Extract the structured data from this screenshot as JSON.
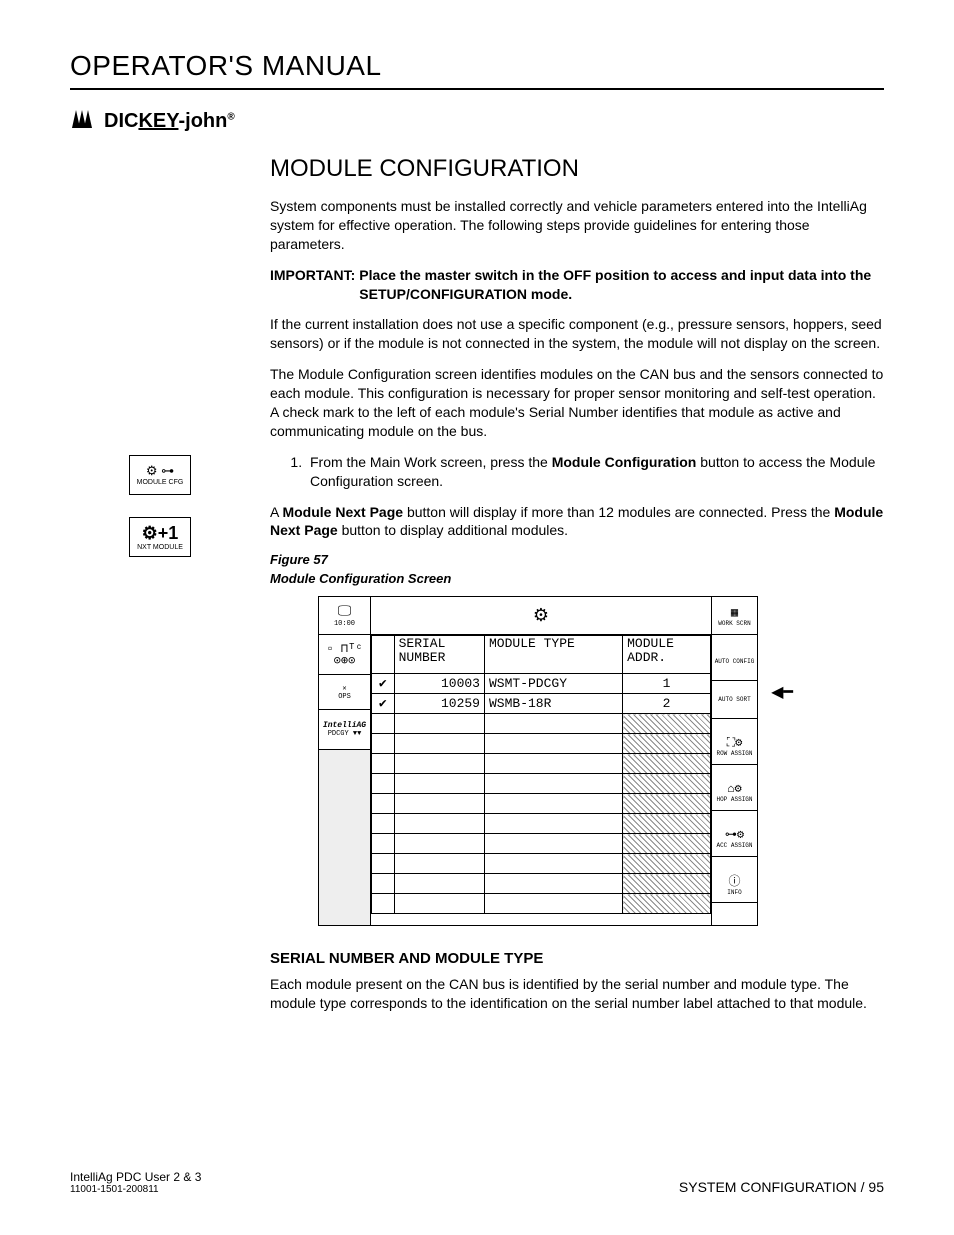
{
  "header": {
    "title": "OPERATOR'S MANUAL"
  },
  "logo": {
    "brand_pre": "DIC",
    "brand_key": "KEY",
    "brand_post": "-john",
    "reg": "®"
  },
  "sidebar": {
    "module_cfg": {
      "glyphs": "⚙ ⊶",
      "label": "MODULE CFG"
    },
    "nxt_module": {
      "glyphs": "⚙+1",
      "label": "NXT MODULE"
    }
  },
  "section": {
    "title": "MODULE CONFIGURATION",
    "p1": "System components must be installed correctly and vehicle parameters entered into the IntelliAg system for effective operation. The following steps provide guidelines for entering those parameters.",
    "important_label": "IMPORTANT:",
    "important_text": "Place the master switch in the OFF position to access and input data into the SETUP/CONFIGURATION mode.",
    "p2": "If the current installation does not use a specific component (e.g., pressure sensors, hoppers, seed sensors) or if the module is not connected in the system, the module will not display on the screen.",
    "p3": "The Module Configuration screen identifies modules on the CAN bus and the sensors connected to each module. This configuration is necessary for proper sensor monitoring and self-test operation. A check mark to the left of each module's Serial Number identifies that module as active and communicating module on the bus.",
    "step1_pre": "From the Main Work screen, press the ",
    "step1_bold": "Module Configuration",
    "step1_post": " button to access the Module Configuration screen.",
    "p4_pre": "A ",
    "p4_bold": "Module Next Page",
    "p4_mid": " button will display if more than 12 modules are connected. Press the ",
    "p4_bold2": "Module Next Page",
    "p4_post": " button to display additional modules."
  },
  "figure": {
    "number": "Figure 57",
    "caption": "Module Configuration Screen",
    "time": "10:00",
    "ops": "OPS",
    "iag_brand": "IntelliAG",
    "iag_sub": "PDCGY ▼▼",
    "headers": {
      "serial": "SERIAL NUMBER",
      "type": "MODULE TYPE",
      "addr": "MODULE ADDR."
    },
    "rows": [
      {
        "chk": "✔",
        "serial": "10003",
        "type": "WSMT-PDCGY",
        "addr": "1",
        "hatch": false
      },
      {
        "chk": "✔",
        "serial": "10259",
        "type": "WSMB-18R",
        "addr": "2",
        "hatch": false
      },
      {
        "chk": "",
        "serial": "",
        "type": "",
        "addr": "",
        "hatch": true
      },
      {
        "chk": "",
        "serial": "",
        "type": "",
        "addr": "",
        "hatch": true
      },
      {
        "chk": "",
        "serial": "",
        "type": "",
        "addr": "",
        "hatch": true
      },
      {
        "chk": "",
        "serial": "",
        "type": "",
        "addr": "",
        "hatch": true
      },
      {
        "chk": "",
        "serial": "",
        "type": "",
        "addr": "",
        "hatch": true
      },
      {
        "chk": "",
        "serial": "",
        "type": "",
        "addr": "",
        "hatch": true
      },
      {
        "chk": "",
        "serial": "",
        "type": "",
        "addr": "",
        "hatch": true
      },
      {
        "chk": "",
        "serial": "",
        "type": "",
        "addr": "",
        "hatch": true
      },
      {
        "chk": "",
        "serial": "",
        "type": "",
        "addr": "",
        "hatch": true
      },
      {
        "chk": "",
        "serial": "",
        "type": "",
        "addr": "",
        "hatch": true
      }
    ],
    "right": {
      "work_scrn": "WORK SCRN",
      "auto_config": "AUTO CONFIG",
      "auto_sort": "AUTO SORT",
      "row_assign": "ROW ASSIGN",
      "hop_assign": "HOP ASSIGN",
      "acc_assign": "ACC ASSIGN",
      "info": "INFO"
    }
  },
  "subsection": {
    "title": "SERIAL NUMBER AND MODULE TYPE",
    "p1": "Each module present on the CAN bus is identified by the serial number and module type. The module type corresponds to the identification on the serial number label attached to that module."
  },
  "footer": {
    "left_line1": "IntelliAg PDC User 2 & 3",
    "left_line2": "11001-1501-200811",
    "right": "SYSTEM CONFIGURATION / 95"
  }
}
